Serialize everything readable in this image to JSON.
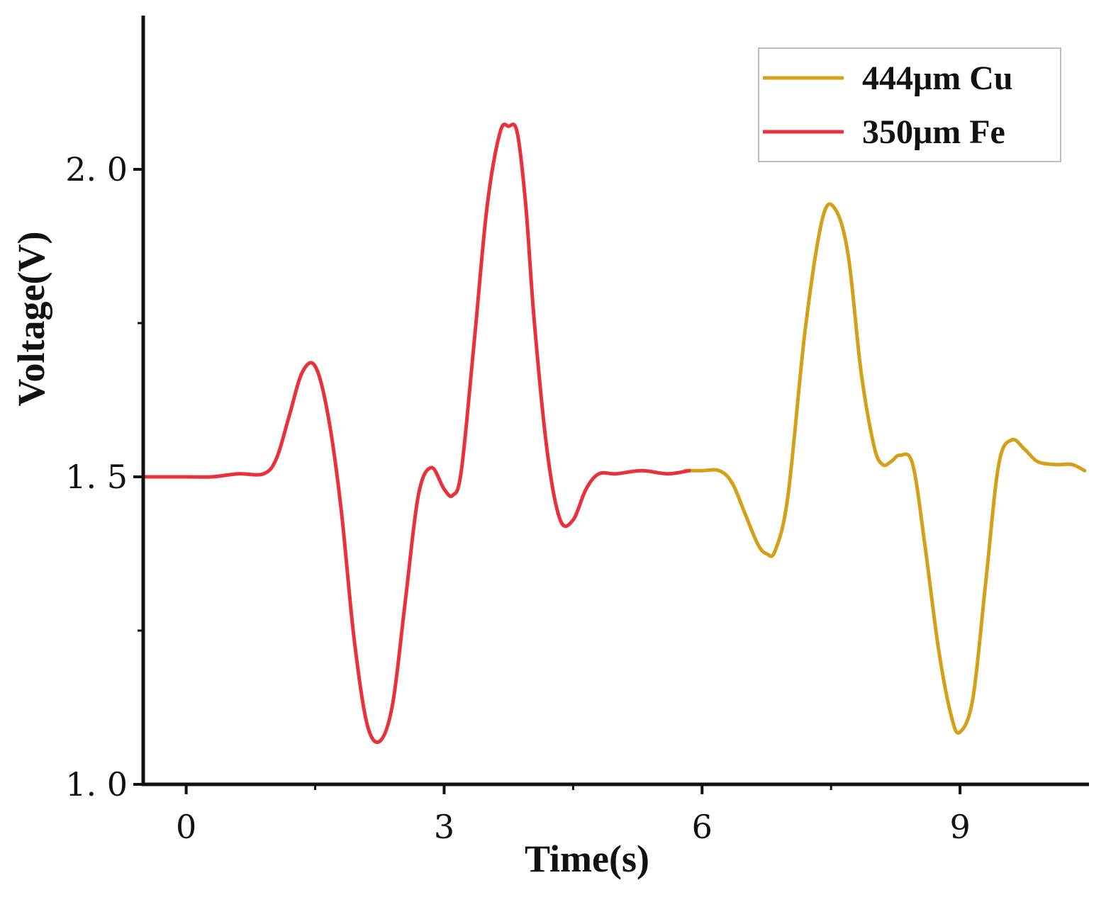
{
  "chart_data": {
    "type": "line",
    "xlabel": "Time(s)",
    "ylabel": "Voltage(V)",
    "xlim": [
      -0.5,
      10.5
    ],
    "ylim": [
      1.0,
      2.25
    ],
    "xticks": [
      "0",
      "3",
      "6",
      "9"
    ],
    "yticks": [
      "1.0",
      "1.5",
      "2.0"
    ],
    "legend_position": "top-right",
    "series": [
      {
        "name": "444μm Cu",
        "color": "#d4a017",
        "x": [
          5.8,
          6.0,
          6.2,
          6.35,
          6.5,
          6.65,
          6.75,
          6.85,
          7.0,
          7.2,
          7.4,
          7.55,
          7.7,
          7.85,
          8.0,
          8.1,
          8.2,
          8.3,
          8.45,
          8.6,
          8.75,
          8.9,
          9.0,
          9.15,
          9.3,
          9.45,
          9.6,
          9.75,
          9.9,
          10.1,
          10.3,
          10.45
        ],
        "y": [
          1.51,
          1.51,
          1.51,
          1.49,
          1.44,
          1.39,
          1.375,
          1.38,
          1.47,
          1.74,
          1.92,
          1.935,
          1.86,
          1.67,
          1.55,
          1.52,
          1.525,
          1.535,
          1.52,
          1.38,
          1.22,
          1.11,
          1.085,
          1.14,
          1.33,
          1.52,
          1.56,
          1.545,
          1.525,
          1.52,
          1.52,
          1.51
        ]
      },
      {
        "name": "350μm Fe",
        "color": "#e8313a",
        "x": [
          -0.5,
          -0.2,
          0.0,
          0.3,
          0.6,
          0.9,
          1.05,
          1.2,
          1.35,
          1.5,
          1.65,
          1.8,
          1.95,
          2.1,
          2.25,
          2.4,
          2.55,
          2.7,
          2.85,
          3.0,
          3.1,
          3.2,
          3.35,
          3.5,
          3.65,
          3.75,
          3.85,
          3.95,
          4.05,
          4.2,
          4.35,
          4.5,
          4.65,
          4.8,
          5.0,
          5.3,
          5.6,
          5.85
        ],
        "y": [
          1.5,
          1.5,
          1.5,
          1.5,
          1.505,
          1.505,
          1.53,
          1.6,
          1.67,
          1.68,
          1.6,
          1.45,
          1.24,
          1.1,
          1.07,
          1.13,
          1.3,
          1.47,
          1.515,
          1.48,
          1.47,
          1.51,
          1.72,
          1.94,
          2.06,
          2.07,
          2.06,
          1.94,
          1.75,
          1.54,
          1.43,
          1.43,
          1.48,
          1.505,
          1.505,
          1.51,
          1.505,
          1.51
        ]
      }
    ]
  }
}
